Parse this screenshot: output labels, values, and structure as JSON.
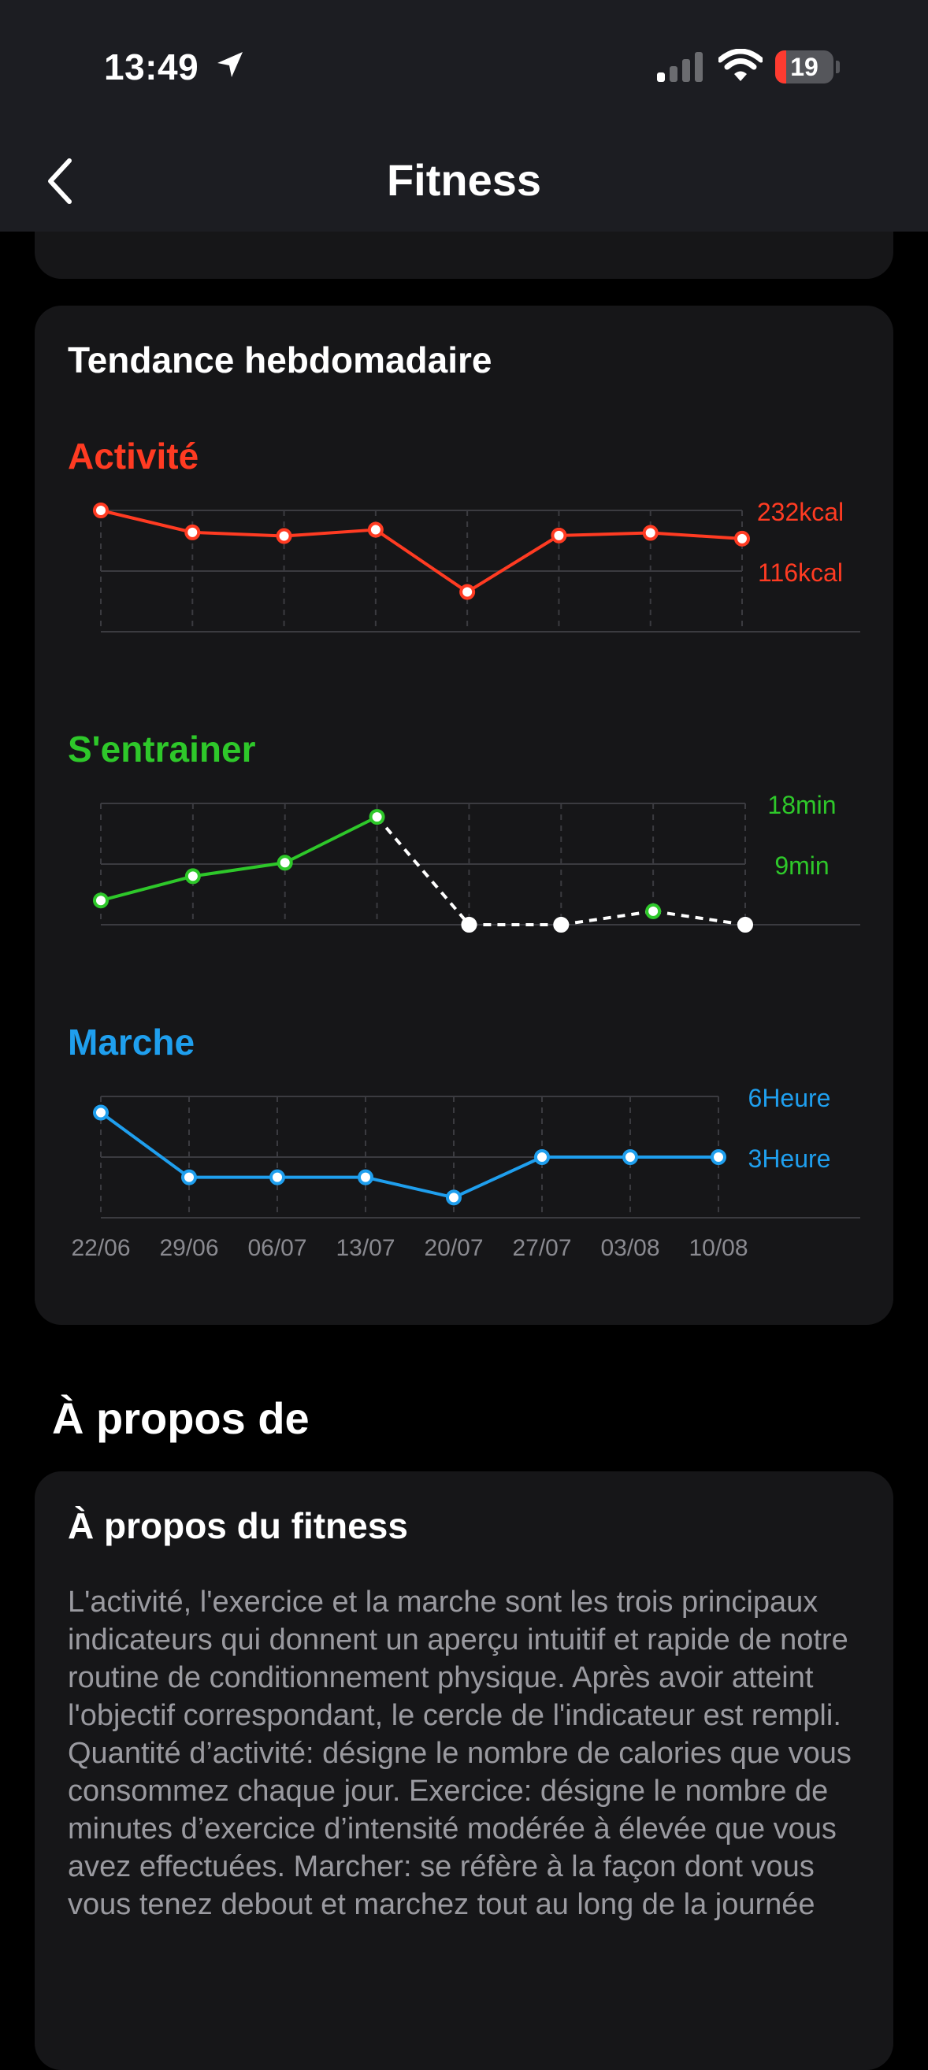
{
  "status_bar": {
    "time": "13:49",
    "battery": "19",
    "battery_level": 0.19
  },
  "nav": {
    "title": "Fitness"
  },
  "trend": {
    "title": "Tendance hebdomadaire",
    "colors": {
      "activity": "#ff3b22",
      "exercise": "#2ec82a",
      "walk": "#1f9fee",
      "no_data": "#ffffff"
    },
    "dates": [
      "22/06",
      "29/06",
      "06/07",
      "13/07",
      "20/07",
      "27/07",
      "03/08",
      "10/08"
    ],
    "activity": {
      "title": "Activité",
      "labels": [
        "232kcal",
        "116kcal"
      ],
      "chart_data": {
        "type": "line",
        "x": [
          "22/06",
          "29/06",
          "06/07",
          "13/07",
          "20/07",
          "27/07",
          "03/08",
          "10/08"
        ],
        "series": [
          {
            "name": "Activité",
            "values": [
              232,
              190,
              183,
              195,
              76,
              184,
              189,
              178
            ]
          }
        ],
        "ylabel": "kcal",
        "ylim": [
          0,
          232
        ],
        "grid": true
      }
    },
    "exercise": {
      "title": "S'entrainer",
      "labels": [
        "18min",
        "9min"
      ],
      "chart_data": {
        "type": "line",
        "x": [
          "22/06",
          "29/06",
          "06/07",
          "13/07",
          "20/07",
          "27/07",
          "03/08",
          "10/08"
        ],
        "series": [
          {
            "name": "S'entrainer",
            "values": [
              3.6,
              7.2,
              9.2,
              16,
              0,
              0,
              2,
              0
            ]
          }
        ],
        "ylabel": "min",
        "ylim": [
          0,
          18
        ],
        "grid": true
      }
    },
    "walk": {
      "title": "Marche",
      "labels": [
        "6Heure",
        "3Heure"
      ],
      "chart_data": {
        "type": "line",
        "x": [
          "22/06",
          "29/06",
          "06/07",
          "13/07",
          "20/07",
          "27/07",
          "03/08",
          "10/08"
        ],
        "series": [
          {
            "name": "Marche",
            "values": [
              5.2,
              2,
              2,
              2,
              1,
              3,
              3,
              3
            ]
          }
        ],
        "ylabel": "Heure",
        "ylim": [
          0,
          6
        ],
        "grid": true
      }
    }
  },
  "about": {
    "section_title": "À propos de",
    "card_title": "À propos du fitness",
    "text": "L'activité, l'exercice et la marche sont les trois principaux indicateurs qui donnent un aperçu intuitif et rapide de notre routine de conditionnement physique. Après avoir atteint l'objectif correspondant, le cercle de l'indicateur est rempli. Quantité d’activité: désigne le nombre de calories que vous consommez chaque jour.  Exercice: désigne le nombre de minutes d’exercice d’intensité modérée à élevée que vous avez effectuées. Marcher: se réfère à la façon dont vous vous tenez debout et marchez tout au long de la journée"
  }
}
